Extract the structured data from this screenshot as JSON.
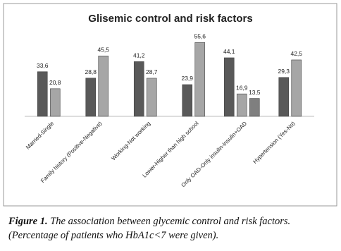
{
  "chart_data": {
    "type": "bar",
    "title": "Glisemic control and risk factors",
    "categories": [
      "Married-Single",
      "Family history (Positive-Negative)",
      "Working-Not working",
      "Lower-Higher than high school",
      "Only OAD-Only insulin-Insulin+OAD",
      "Hypertension (Yes-No)"
    ],
    "series": [
      {
        "color": "#595959",
        "values": [
          33.6,
          28.8,
          41.2,
          23.9,
          44.1,
          29.3
        ],
        "value_labels": [
          "33,6",
          "28,8",
          "41,2",
          "23,9",
          "44,1",
          "29,3"
        ]
      },
      {
        "color": "#a6a6a6",
        "values": [
          20.8,
          45.5,
          28.7,
          55.6,
          16.9,
          42.5
        ],
        "value_labels": [
          "20,8",
          "45,5",
          "28,7",
          "55,6",
          "16,9",
          "42,5"
        ]
      },
      {
        "color": "#7f7f7f",
        "values": [
          null,
          null,
          null,
          null,
          13.5,
          null
        ],
        "value_labels": [
          null,
          null,
          null,
          null,
          "13,5",
          null
        ]
      }
    ],
    "ylim": [
      0,
      60
    ]
  },
  "figure_caption": {
    "label": "Figure 1.",
    "text": "The association between glycemic control and risk factors. (Percentage of patients who HbA1c<7 were given)."
  }
}
